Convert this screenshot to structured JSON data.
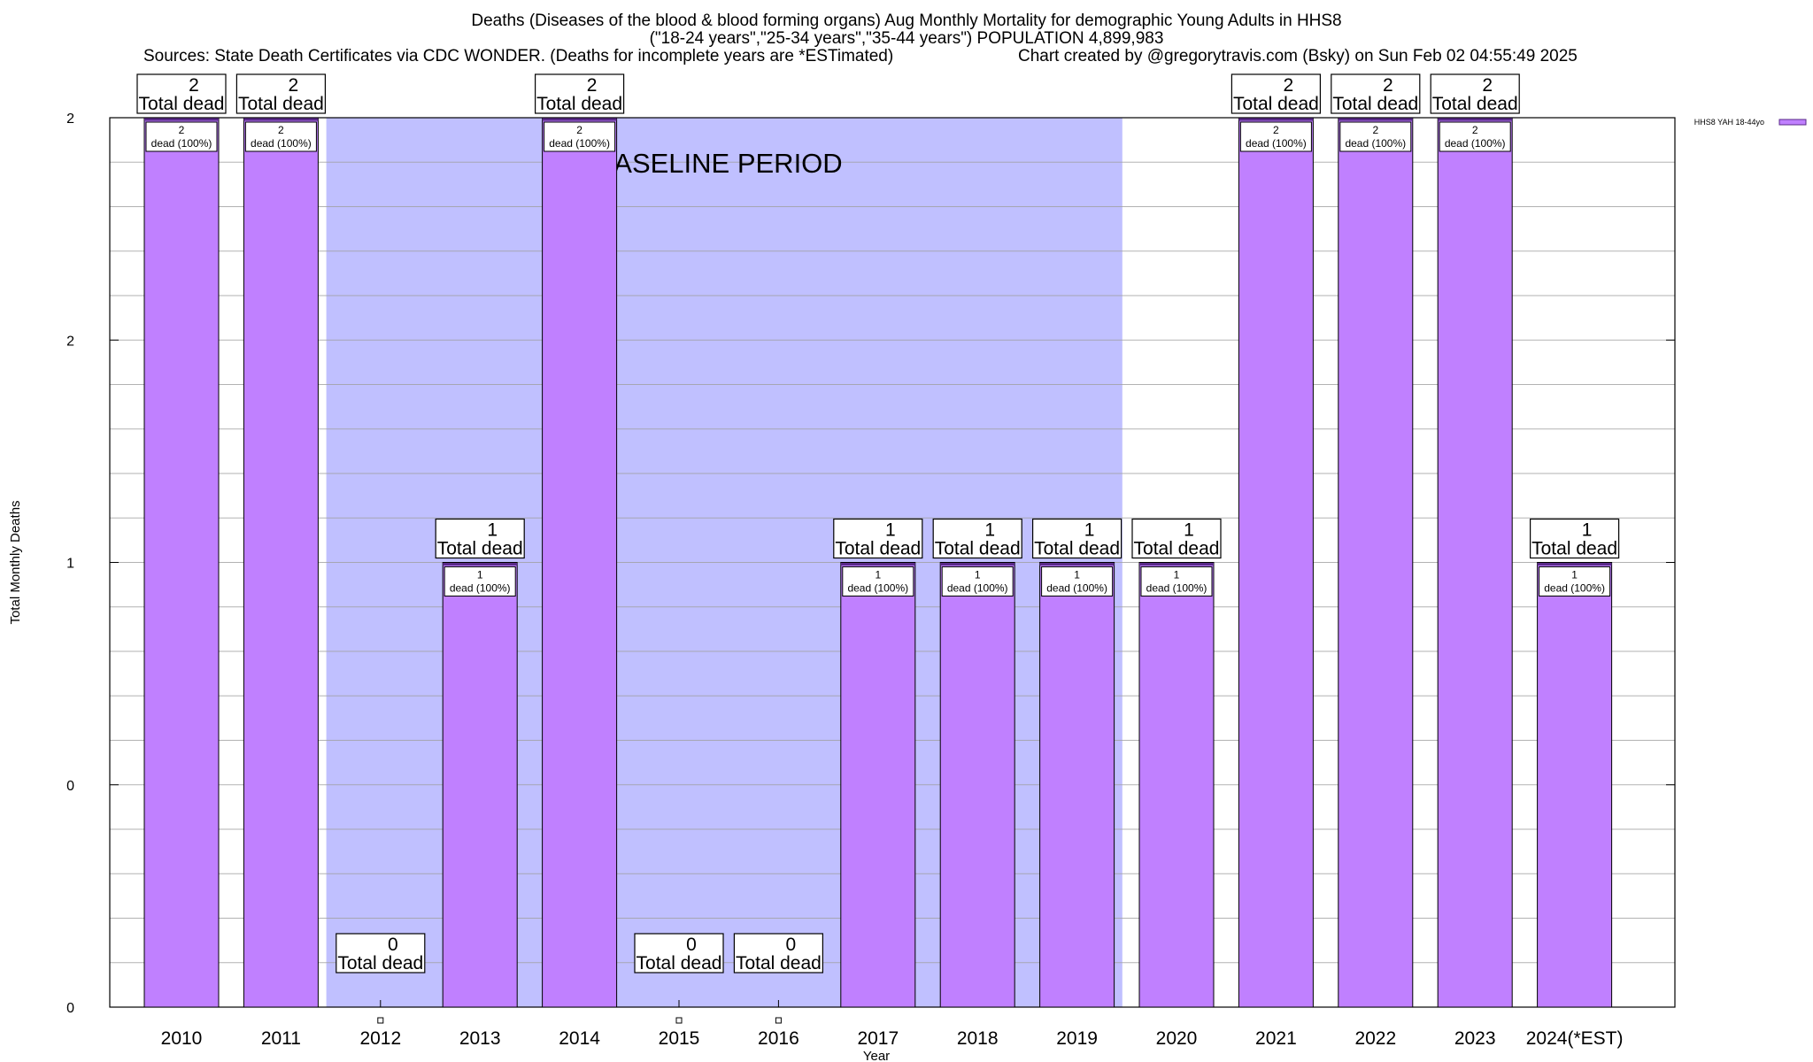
{
  "header": {
    "title_line1": "Deaths (Diseases of the blood & blood forming organs) Aug Monthly Mortality for demographic Young Adults in HHS8",
    "title_line2": "(\"18-24 years\",\"25-34 years\",\"35-44 years\") POPULATION 4,899,983",
    "sources": "Sources: State Death Certificates via CDC WONDER. (Deaths for incomplete years are *ESTimated)",
    "credit": "Chart created by @gregorytravis.com (Bsky) on Sun Feb 02 04:55:49 2025"
  },
  "chart_data": {
    "type": "bar",
    "xlabel": "Year",
    "ylabel": "Total Monthly Deaths",
    "ylim": [
      0,
      2
    ],
    "y_tick_labels": [
      "0",
      "0",
      "1",
      "2",
      "2"
    ],
    "categories": [
      "2010",
      "2011",
      "2012",
      "2013",
      "2014",
      "2015",
      "2016",
      "2017",
      "2018",
      "2019",
      "2020",
      "2021",
      "2022",
      "2023",
      "2024(*EST)"
    ],
    "series": [
      {
        "name": "HHS8 YAH 18-44yo",
        "values": [
          2,
          2,
          0,
          1,
          2,
          0,
          0,
          1,
          1,
          1,
          1,
          2,
          2,
          2,
          1
        ]
      }
    ],
    "total_label_suffix": "Total dead",
    "inner_label_suffix": "dead (100%)",
    "baseline": {
      "label": "BASELINE PERIOD",
      "from": "2012",
      "to": "2019"
    },
    "grid": true,
    "legend_position": "top-right",
    "colors": {
      "bar": "#c080ff",
      "bar_edge": "#5a2a8a",
      "baseline": "#c0c0ff"
    }
  }
}
